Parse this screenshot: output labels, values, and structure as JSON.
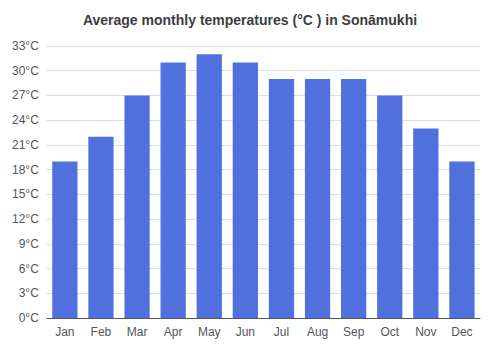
{
  "chart_data": {
    "type": "bar",
    "title": "Average monthly temperatures (°C ) in Sonāmukhi",
    "categories": [
      "Jan",
      "Feb",
      "Mar",
      "Apr",
      "May",
      "Jun",
      "Jul",
      "Aug",
      "Sep",
      "Oct",
      "Nov",
      "Dec"
    ],
    "values": [
      19,
      22,
      27,
      31,
      32,
      31,
      29,
      29,
      29,
      27,
      23,
      19
    ],
    "ylim": [
      0,
      33
    ],
    "yticks": [
      {
        "value": 0,
        "label": "0°C"
      },
      {
        "value": 3,
        "label": "3°C"
      },
      {
        "value": 6,
        "label": "6°C"
      },
      {
        "value": 9,
        "label": "9°C"
      },
      {
        "value": 12,
        "label": "12°C"
      },
      {
        "value": 15,
        "label": "15°C"
      },
      {
        "value": 18,
        "label": "18°C"
      },
      {
        "value": 21,
        "label": "21°C"
      },
      {
        "value": 24,
        "label": "24°C"
      },
      {
        "value": 27,
        "label": "27°C"
      },
      {
        "value": 30,
        "label": "30°C"
      },
      {
        "value": 33,
        "label": "33°C"
      }
    ],
    "grid": true
  }
}
